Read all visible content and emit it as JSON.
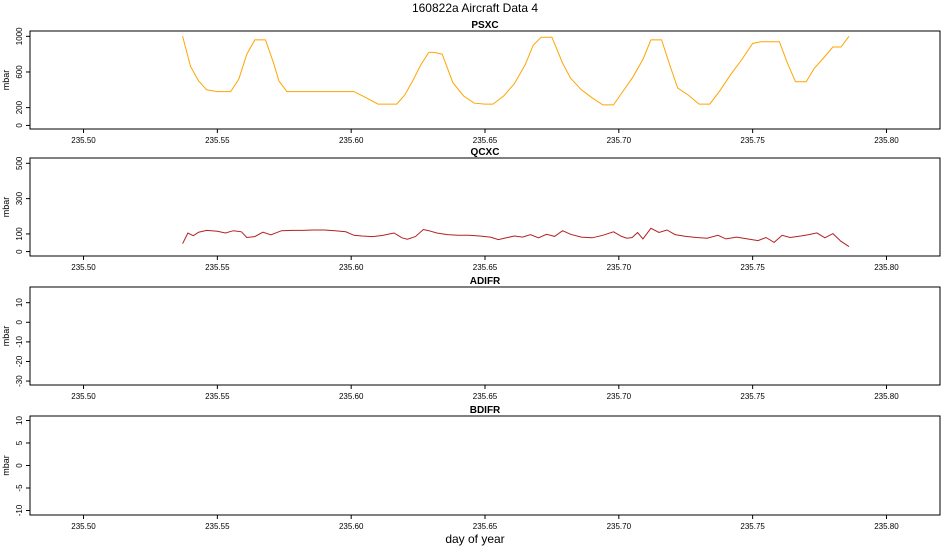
{
  "figure": {
    "title": "160822a   Aircraft Data 4",
    "xlabel": "day of year"
  },
  "chart_data": [
    {
      "type": "line",
      "title": "PSXC",
      "ylabel": "mbar",
      "xlim": [
        235.48,
        235.82
      ],
      "ylim": [
        -40,
        1060
      ],
      "xticks": [
        235.5,
        235.55,
        235.6,
        235.65,
        235.7,
        235.75,
        235.8
      ],
      "xtick_labels": [
        "235.50",
        "235.55",
        "235.60",
        "235.65",
        "235.70",
        "235.75",
        "235.80"
      ],
      "yticks": [
        0,
        200,
        600,
        1000
      ],
      "ytick_labels": [
        "0",
        "200",
        "600",
        "1000"
      ],
      "series": [
        {
          "color": "#FFA500",
          "x": [
            235.537,
            235.54,
            235.543,
            235.546,
            235.55,
            235.555,
            235.558,
            235.561,
            235.564,
            235.568,
            235.571,
            235.573,
            235.576,
            235.58,
            235.585,
            235.59,
            235.595,
            235.598,
            235.601,
            235.605,
            235.61,
            235.614,
            235.617,
            235.62,
            235.623,
            235.626,
            235.629,
            235.631,
            235.634,
            235.638,
            235.642,
            235.646,
            235.65,
            235.653,
            235.657,
            235.661,
            235.665,
            235.668,
            235.671,
            235.675,
            235.679,
            235.682,
            235.686,
            235.69,
            235.694,
            235.698,
            235.701,
            235.705,
            235.709,
            235.712,
            235.716,
            235.719,
            235.722,
            235.726,
            235.73,
            235.734,
            235.738,
            235.742,
            235.746,
            235.75,
            235.753,
            235.756,
            235.76,
            235.763,
            235.766,
            235.77,
            235.773,
            235.776,
            235.78,
            235.783,
            235.786
          ],
          "y": [
            1000,
            660,
            500,
            400,
            380,
            380,
            520,
            800,
            960,
            960,
            700,
            500,
            380,
            380,
            380,
            380,
            380,
            380,
            380,
            320,
            240,
            240,
            240,
            340,
            500,
            680,
            820,
            820,
            800,
            480,
            330,
            250,
            240,
            240,
            330,
            470,
            680,
            900,
            990,
            990,
            700,
            530,
            400,
            310,
            230,
            230,
            360,
            530,
            740,
            960,
            960,
            680,
            420,
            340,
            240,
            240,
            400,
            580,
            740,
            920,
            940,
            940,
            940,
            700,
            490,
            490,
            640,
            740,
            880,
            880,
            1000
          ]
        }
      ]
    },
    {
      "type": "line",
      "title": "QCXC",
      "ylabel": "mbar",
      "xlim": [
        235.48,
        235.82
      ],
      "ylim": [
        -25,
        530
      ],
      "xticks": [
        235.5,
        235.55,
        235.6,
        235.65,
        235.7,
        235.75,
        235.8
      ],
      "xtick_labels": [
        "235.50",
        "235.55",
        "235.60",
        "235.65",
        "235.70",
        "235.75",
        "235.80"
      ],
      "yticks": [
        0,
        100,
        300,
        500
      ],
      "ytick_labels": [
        "0",
        "100",
        "300",
        "500"
      ],
      "series": [
        {
          "color": "#B22222",
          "x": [
            235.537,
            235.539,
            235.541,
            235.543,
            235.546,
            235.55,
            235.553,
            235.556,
            235.559,
            235.561,
            235.564,
            235.567,
            235.57,
            235.574,
            235.578,
            235.582,
            235.586,
            235.59,
            235.594,
            235.598,
            235.601,
            235.604,
            235.608,
            235.612,
            235.616,
            235.619,
            235.621,
            235.624,
            235.627,
            235.629,
            235.632,
            235.636,
            235.64,
            235.644,
            235.648,
            235.652,
            235.655,
            235.658,
            235.661,
            235.664,
            235.667,
            235.67,
            235.673,
            235.676,
            235.679,
            235.682,
            235.686,
            235.69,
            235.694,
            235.698,
            235.701,
            235.703,
            235.705,
            235.707,
            235.709,
            235.712,
            235.715,
            235.718,
            235.721,
            235.725,
            235.729,
            235.733,
            235.737,
            235.74,
            235.744,
            235.748,
            235.752,
            235.755,
            235.758,
            235.761,
            235.764,
            235.768,
            235.771,
            235.774,
            235.777,
            235.78,
            235.783,
            235.786
          ],
          "y": [
            45,
            105,
            90,
            110,
            120,
            115,
            105,
            118,
            112,
            80,
            85,
            110,
            95,
            118,
            120,
            120,
            122,
            122,
            118,
            112,
            92,
            88,
            85,
            92,
            105,
            78,
            70,
            85,
            125,
            118,
            105,
            96,
            92,
            92,
            88,
            82,
            68,
            78,
            88,
            82,
            96,
            78,
            98,
            86,
            118,
            98,
            82,
            78,
            92,
            112,
            86,
            76,
            80,
            108,
            72,
            132,
            108,
            122,
            96,
            86,
            80,
            76,
            92,
            72,
            82,
            72,
            62,
            80,
            52,
            92,
            80,
            88,
            96,
            106,
            78,
            102,
            58,
            28
          ]
        }
      ]
    },
    {
      "type": "line",
      "title": "ADIFR",
      "ylabel": "mbar",
      "xlim": [
        235.48,
        235.82
      ],
      "ylim": [
        -32,
        18
      ],
      "xticks": [
        235.5,
        235.55,
        235.6,
        235.65,
        235.7,
        235.75,
        235.8
      ],
      "xtick_labels": [
        "235.50",
        "235.55",
        "235.60",
        "235.65",
        "235.70",
        "235.75",
        "235.80"
      ],
      "yticks": [
        -30,
        -20,
        -10,
        0,
        10
      ],
      "ytick_labels": [
        "-30",
        "-20",
        "-10",
        "0",
        "10"
      ],
      "series": []
    },
    {
      "type": "line",
      "title": "BDIFR",
      "ylabel": "mbar",
      "xlim": [
        235.48,
        235.82
      ],
      "ylim": [
        -11,
        11
      ],
      "xticks": [
        235.5,
        235.55,
        235.6,
        235.65,
        235.7,
        235.75,
        235.8
      ],
      "xtick_labels": [
        "235.50",
        "235.55",
        "235.60",
        "235.65",
        "235.70",
        "235.75",
        "235.80"
      ],
      "yticks": [
        -10,
        -5,
        0,
        5,
        10
      ],
      "ytick_labels": [
        "-10",
        "-5",
        "0",
        "5",
        "10"
      ],
      "series": []
    }
  ]
}
